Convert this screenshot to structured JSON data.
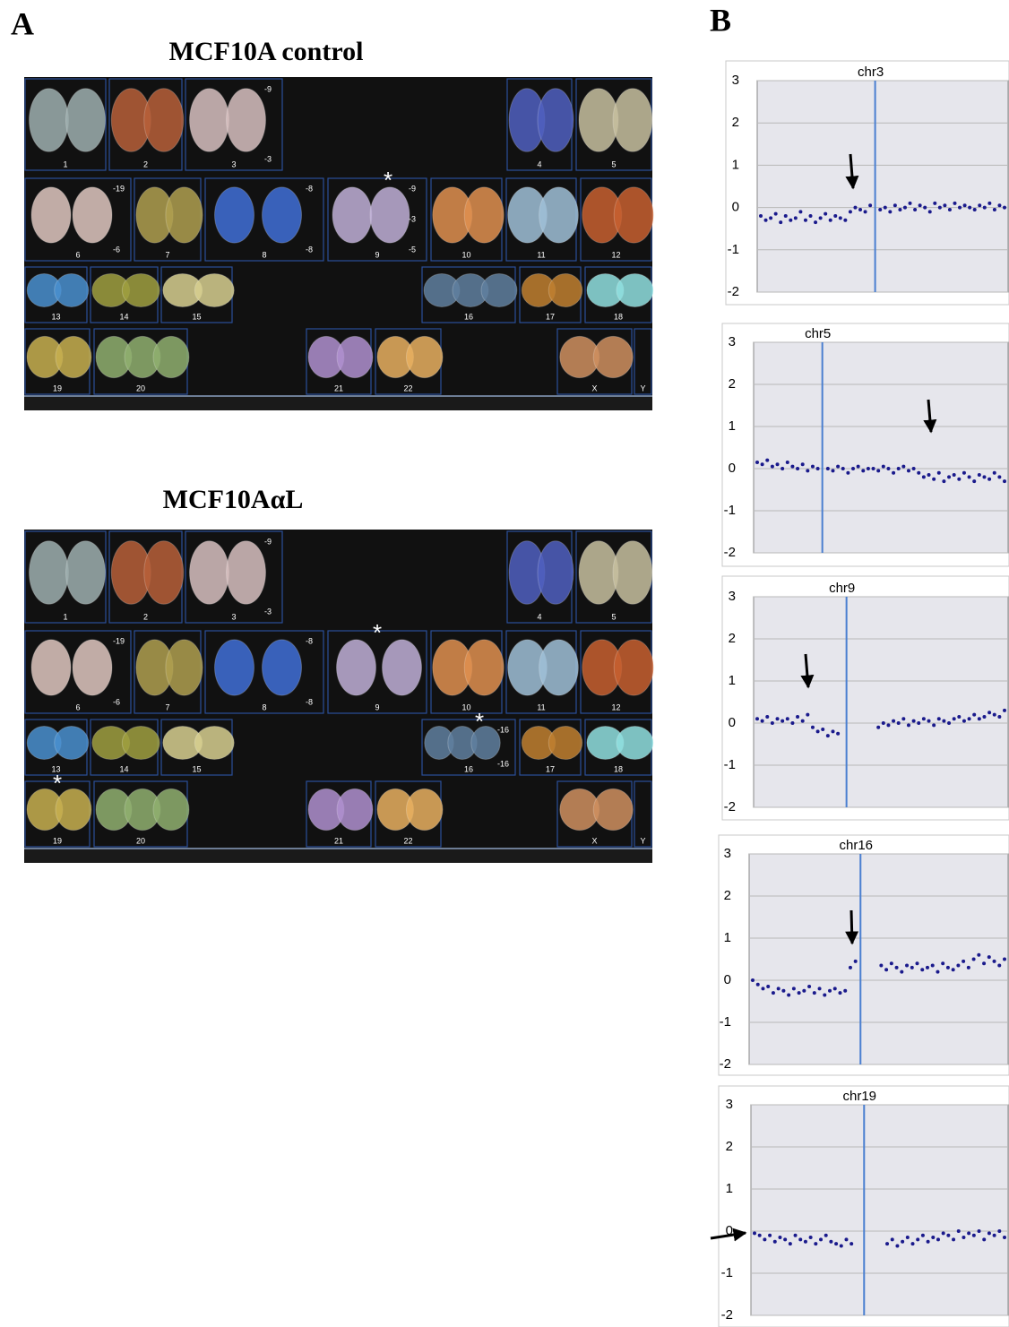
{
  "panel_a": {
    "label": "A",
    "karyotypes": [
      {
        "title": "MCF10A control",
        "chromosomes": [
          {
            "label": "1"
          },
          {
            "label": "2"
          },
          {
            "label": "3",
            "marks": [
              "-9",
              "-3"
            ]
          },
          {
            "label": "4"
          },
          {
            "label": "5"
          },
          {
            "label": "6",
            "marks": [
              "-19",
              "-6"
            ]
          },
          {
            "label": "7"
          },
          {
            "label": "8",
            "marks": [
              "-8",
              "-8"
            ]
          },
          {
            "label": "9",
            "marks": [
              "-9",
              "-3",
              "-5"
            ],
            "star": "*"
          },
          {
            "label": "10"
          },
          {
            "label": "11"
          },
          {
            "label": "12"
          },
          {
            "label": "13"
          },
          {
            "label": "14"
          },
          {
            "label": "15"
          },
          {
            "label": "16"
          },
          {
            "label": "17"
          },
          {
            "label": "18"
          },
          {
            "label": "19"
          },
          {
            "label": "20"
          },
          {
            "label": "21"
          },
          {
            "label": "22"
          },
          {
            "label": "X"
          },
          {
            "label": "Y"
          }
        ]
      },
      {
        "title": "MCF10AαL",
        "chromosomes": [
          {
            "label": "1"
          },
          {
            "label": "2"
          },
          {
            "label": "3",
            "marks": [
              "-9",
              "-3"
            ]
          },
          {
            "label": "4"
          },
          {
            "label": "5"
          },
          {
            "label": "6",
            "marks": [
              "-19",
              "-6"
            ]
          },
          {
            "label": "7"
          },
          {
            "label": "8",
            "marks": [
              "-8",
              "-8"
            ]
          },
          {
            "label": "9",
            "star": "*"
          },
          {
            "label": "10"
          },
          {
            "label": "11"
          },
          {
            "label": "12"
          },
          {
            "label": "13"
          },
          {
            "label": "14"
          },
          {
            "label": "15"
          },
          {
            "label": "16",
            "marks": [
              "-16",
              "-16"
            ],
            "star": "*"
          },
          {
            "label": "17"
          },
          {
            "label": "18"
          },
          {
            "label": "19",
            "star": "*"
          },
          {
            "label": "20"
          },
          {
            "label": "21"
          },
          {
            "label": "22"
          },
          {
            "label": "X"
          },
          {
            "label": "Y"
          }
        ]
      }
    ]
  },
  "panel_b": {
    "label": "B"
  },
  "chart_data": [
    {
      "type": "scatter",
      "title": "chr3",
      "color": "#1a1a8c",
      "ylim": [
        -2,
        3
      ],
      "yticks": [
        -2,
        -1,
        0,
        1,
        2,
        3
      ],
      "grid": true,
      "values": [
        -0.2,
        -0.3,
        -0.25,
        -0.15,
        -0.35,
        -0.2,
        -0.3,
        -0.25,
        -0.1,
        -0.3,
        -0.2,
        -0.35,
        -0.25,
        -0.15,
        -0.3,
        -0.2,
        -0.25,
        -0.3,
        -0.1,
        0.0,
        -0.05,
        -0.1,
        0.05,
        null,
        -0.05,
        0.0,
        -0.1,
        0.05,
        -0.05,
        0.0,
        0.1,
        -0.05,
        0.05,
        0.0,
        -0.1,
        0.1,
        0.0,
        0.05,
        -0.05,
        0.1,
        0.0,
        0.05,
        0.0,
        -0.05,
        0.05,
        0.0,
        0.1,
        -0.05,
        0.05,
        0.0
      ]
    },
    {
      "type": "scatter",
      "title": "chr5",
      "color": "#1a1a8c",
      "ylim": [
        -2,
        3
      ],
      "yticks": [
        -2,
        -1,
        0,
        1,
        2,
        3
      ],
      "grid": true,
      "values": [
        0.15,
        0.1,
        0.2,
        0.05,
        0.1,
        0.0,
        0.15,
        0.05,
        0.0,
        0.1,
        -0.05,
        0.05,
        0.0,
        null,
        0.0,
        -0.05,
        0.05,
        0.0,
        -0.1,
        0.0,
        0.05,
        -0.05,
        0.0,
        0.0,
        -0.05,
        0.05,
        0.0,
        -0.1,
        0.0,
        0.05,
        -0.05,
        0.0,
        -0.1,
        -0.2,
        -0.15,
        -0.25,
        -0.1,
        -0.3,
        -0.2,
        -0.15,
        -0.25,
        -0.1,
        -0.2,
        -0.3,
        -0.15,
        -0.2,
        -0.25,
        -0.1,
        -0.2,
        -0.3
      ]
    },
    {
      "type": "scatter",
      "title": "chr9",
      "color": "#1a1a8c",
      "ylim": [
        -2,
        3
      ],
      "yticks": [
        -2,
        -1,
        0,
        1,
        2,
        3
      ],
      "grid": true,
      "values": [
        0.1,
        0.05,
        0.15,
        0.0,
        0.1,
        0.05,
        0.1,
        0.0,
        0.15,
        0.05,
        0.2,
        -0.1,
        -0.2,
        -0.15,
        -0.3,
        -0.2,
        -0.25,
        null,
        null,
        null,
        null,
        null,
        null,
        null,
        -0.1,
        0.0,
        -0.05,
        0.05,
        0.0,
        0.1,
        -0.05,
        0.05,
        0.0,
        0.1,
        0.05,
        -0.05,
        0.1,
        0.05,
        0.0,
        0.1,
        0.15,
        0.05,
        0.1,
        0.2,
        0.1,
        0.15,
        0.25,
        0.2,
        0.15,
        0.3
      ]
    },
    {
      "type": "scatter",
      "title": "chr16",
      "color": "#1a1a8c",
      "ylim": [
        -2,
        3
      ],
      "yticks": [
        -2,
        -1,
        0,
        1,
        2,
        3
      ],
      "grid": true,
      "values": [
        0.0,
        -0.1,
        -0.2,
        -0.15,
        -0.3,
        -0.2,
        -0.25,
        -0.35,
        -0.2,
        -0.3,
        -0.25,
        -0.15,
        -0.3,
        -0.2,
        -0.35,
        -0.25,
        -0.2,
        -0.3,
        -0.25,
        0.3,
        0.45,
        null,
        null,
        null,
        null,
        0.35,
        0.25,
        0.4,
        0.3,
        0.2,
        0.35,
        0.3,
        0.4,
        0.25,
        0.3,
        0.35,
        0.2,
        0.4,
        0.3,
        0.25,
        0.35,
        0.45,
        0.3,
        0.5,
        0.6,
        0.4,
        0.55,
        0.45,
        0.35,
        0.5
      ]
    },
    {
      "type": "scatter",
      "title": "chr19",
      "color": "#1a1a8c",
      "ylim": [
        -2,
        3
      ],
      "yticks": [
        -2,
        -1,
        0,
        1,
        2,
        3
      ],
      "grid": true,
      "values": [
        -0.05,
        -0.1,
        -0.2,
        -0.1,
        -0.25,
        -0.15,
        -0.2,
        -0.3,
        -0.1,
        -0.2,
        -0.25,
        -0.15,
        -0.3,
        -0.2,
        -0.1,
        -0.25,
        -0.3,
        -0.35,
        -0.2,
        -0.3,
        null,
        null,
        null,
        null,
        null,
        null,
        -0.3,
        -0.2,
        -0.35,
        -0.25,
        -0.15,
        -0.3,
        -0.2,
        -0.1,
        -0.25,
        -0.15,
        -0.2,
        -0.05,
        -0.1,
        -0.2,
        0.0,
        -0.15,
        -0.05,
        -0.1,
        0.0,
        -0.2,
        -0.05,
        -0.1,
        0.0,
        -0.15
      ]
    }
  ]
}
